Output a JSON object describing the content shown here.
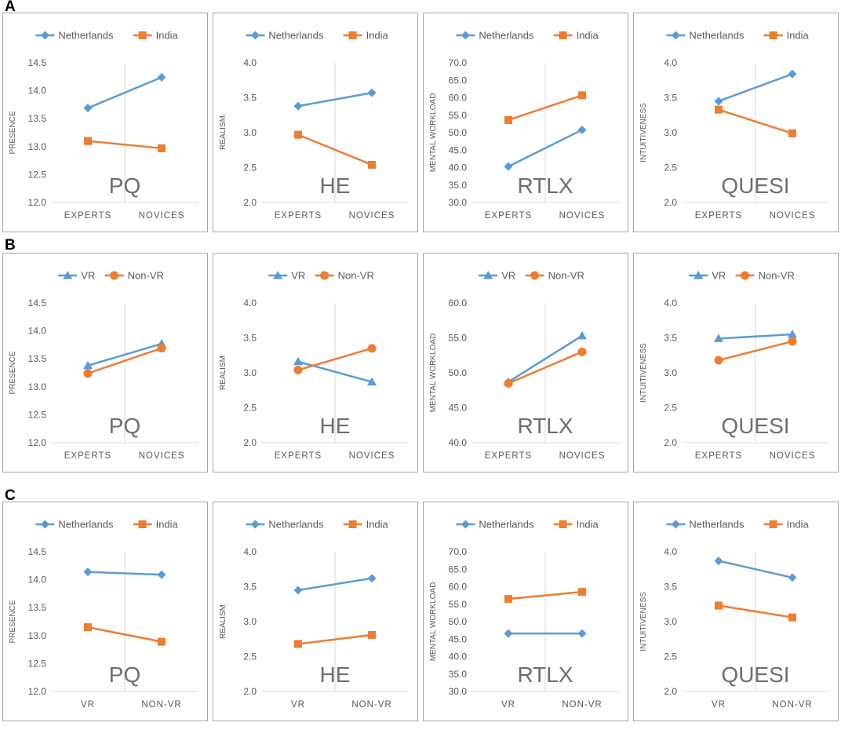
{
  "colors": {
    "blue": "#5b9bd5",
    "orange": "#ed7d31",
    "grid": "#d9d9d9",
    "frame": "#a6a6a6",
    "axis_text": "#595959",
    "watermark": "#6e6e6e"
  },
  "rows": [
    {
      "label": "A"
    },
    {
      "label": "B"
    },
    {
      "label": "C"
    }
  ],
  "chart_data": [
    {
      "row": "A",
      "type": "line",
      "watermark": "PQ",
      "ylabel": "PRESENCE",
      "categories": [
        "EXPERTS",
        "NOVICES"
      ],
      "ylim": [
        12.0,
        14.5
      ],
      "yticks": [
        "12.0",
        "12.5",
        "13.0",
        "13.5",
        "14.0",
        "14.5"
      ],
      "grid": true,
      "legend": "top",
      "series": [
        {
          "name": "Netherlands",
          "marker": "diamond",
          "color": "#5b9bd5",
          "values": [
            13.69,
            14.24
          ]
        },
        {
          "name": "India",
          "marker": "square",
          "color": "#ed7d31",
          "values": [
            13.1,
            12.97
          ]
        }
      ]
    },
    {
      "row": "A",
      "type": "line",
      "watermark": "HE",
      "ylabel": "REALISM",
      "categories": [
        "EXPERTS",
        "NOVICES"
      ],
      "ylim": [
        2.0,
        4.0
      ],
      "yticks": [
        "2.0",
        "2.5",
        "3.0",
        "3.5",
        "4.0"
      ],
      "grid": true,
      "legend": "top",
      "series": [
        {
          "name": "Netherlands",
          "marker": "diamond",
          "color": "#5b9bd5",
          "values": [
            3.38,
            3.57
          ]
        },
        {
          "name": "India",
          "marker": "square",
          "color": "#ed7d31",
          "values": [
            2.97,
            2.54
          ]
        }
      ]
    },
    {
      "row": "A",
      "type": "line",
      "watermark": "RTLX",
      "ylabel": "MENTAL WORKLOAD",
      "categories": [
        "EXPERTS",
        "NOVICES"
      ],
      "ylim": [
        30.0,
        70.0
      ],
      "yticks": [
        "30.0",
        "35.0",
        "40.0",
        "45.0",
        "50.0",
        "55.0",
        "60.0",
        "65.0",
        "70.0"
      ],
      "grid": true,
      "legend": "top",
      "series": [
        {
          "name": "Netherlands",
          "marker": "diamond",
          "color": "#5b9bd5",
          "values": [
            40.3,
            50.8
          ]
        },
        {
          "name": "India",
          "marker": "square",
          "color": "#ed7d31",
          "values": [
            53.6,
            60.7
          ]
        }
      ]
    },
    {
      "row": "A",
      "type": "line",
      "watermark": "QUESI",
      "ylabel": "INTUITIVENESS",
      "categories": [
        "EXPERTS",
        "NOVICES"
      ],
      "ylim": [
        2.0,
        4.0
      ],
      "yticks": [
        "2.0",
        "2.5",
        "3.0",
        "3.5",
        "4.0"
      ],
      "grid": true,
      "legend": "top",
      "series": [
        {
          "name": "Netherlands",
          "marker": "diamond",
          "color": "#5b9bd5",
          "values": [
            3.45,
            3.84
          ]
        },
        {
          "name": "India",
          "marker": "square",
          "color": "#ed7d31",
          "values": [
            3.33,
            2.99
          ]
        }
      ]
    },
    {
      "row": "B",
      "type": "line",
      "watermark": "PQ",
      "ylabel": "PRESENCE",
      "categories": [
        "EXPERTS",
        "NOVICES"
      ],
      "ylim": [
        12.0,
        14.5
      ],
      "yticks": [
        "12.0",
        "12.5",
        "13.0",
        "13.5",
        "14.0",
        "14.5"
      ],
      "grid": true,
      "legend": "top",
      "series": [
        {
          "name": "VR",
          "marker": "triangle",
          "color": "#5b9bd5",
          "values": [
            13.38,
            13.77
          ]
        },
        {
          "name": "Non-VR",
          "marker": "circle",
          "color": "#ed7d31",
          "values": [
            13.24,
            13.69
          ]
        }
      ]
    },
    {
      "row": "B",
      "type": "line",
      "watermark": "HE",
      "ylabel": "REALISM",
      "categories": [
        "EXPERTS",
        "NOVICES"
      ],
      "ylim": [
        2.0,
        4.0
      ],
      "yticks": [
        "2.0",
        "2.5",
        "3.0",
        "3.5",
        "4.0"
      ],
      "grid": true,
      "legend": "top",
      "series": [
        {
          "name": "VR",
          "marker": "triangle",
          "color": "#5b9bd5",
          "values": [
            3.16,
            2.87
          ]
        },
        {
          "name": "Non-VR",
          "marker": "circle",
          "color": "#ed7d31",
          "values": [
            3.04,
            3.35
          ]
        }
      ]
    },
    {
      "row": "B",
      "type": "line",
      "watermark": "RTLX",
      "ylabel": "MENTAL WORKLOAD",
      "categories": [
        "EXPERTS",
        "NOVICES"
      ],
      "ylim": [
        40.0,
        60.0
      ],
      "yticks": [
        "40.0",
        "45.0",
        "50.0",
        "55.0",
        "60.0"
      ],
      "grid": true,
      "legend": "top",
      "series": [
        {
          "name": "VR",
          "marker": "triangle",
          "color": "#5b9bd5",
          "values": [
            48.7,
            55.3
          ]
        },
        {
          "name": "Non-VR",
          "marker": "circle",
          "color": "#ed7d31",
          "values": [
            48.5,
            53.0
          ]
        }
      ]
    },
    {
      "row": "B",
      "type": "line",
      "watermark": "QUESI",
      "ylabel": "INTUITIVENESS",
      "categories": [
        "EXPERTS",
        "NOVICES"
      ],
      "ylim": [
        2.0,
        4.0
      ],
      "yticks": [
        "2.0",
        "2.5",
        "3.0",
        "3.5",
        "4.0"
      ],
      "grid": true,
      "legend": "top",
      "series": [
        {
          "name": "VR",
          "marker": "triangle",
          "color": "#5b9bd5",
          "values": [
            3.49,
            3.55
          ]
        },
        {
          "name": "Non-VR",
          "marker": "circle",
          "color": "#ed7d31",
          "values": [
            3.18,
            3.45
          ]
        }
      ]
    },
    {
      "row": "C",
      "type": "line",
      "watermark": "PQ",
      "ylabel": "PRESENCE",
      "categories": [
        "VR",
        "NON-VR"
      ],
      "ylim": [
        12.0,
        14.5
      ],
      "yticks": [
        "12.0",
        "12.5",
        "13.0",
        "13.5",
        "14.0",
        "14.5"
      ],
      "grid": true,
      "legend": "top",
      "series": [
        {
          "name": "Netherlands",
          "marker": "diamond",
          "color": "#5b9bd5",
          "values": [
            14.14,
            14.09
          ]
        },
        {
          "name": "India",
          "marker": "square",
          "color": "#ed7d31",
          "values": [
            13.15,
            12.89
          ]
        }
      ]
    },
    {
      "row": "C",
      "type": "line",
      "watermark": "HE",
      "ylabel": "REALISM",
      "categories": [
        "VR",
        "NON-VR"
      ],
      "ylim": [
        2.0,
        4.0
      ],
      "yticks": [
        "2.0",
        "2.5",
        "3.0",
        "3.5",
        "4.0"
      ],
      "grid": true,
      "legend": "top",
      "series": [
        {
          "name": "Netherlands",
          "marker": "diamond",
          "color": "#5b9bd5",
          "values": [
            3.45,
            3.62
          ]
        },
        {
          "name": "India",
          "marker": "square",
          "color": "#ed7d31",
          "values": [
            2.68,
            2.81
          ]
        }
      ]
    },
    {
      "row": "C",
      "type": "line",
      "watermark": "RTLX",
      "ylabel": "MENTAL WORKLOAD",
      "categories": [
        "VR",
        "NON-VR"
      ],
      "ylim": [
        30.0,
        70.0
      ],
      "yticks": [
        "30.0",
        "35.0",
        "40.0",
        "45.0",
        "50.0",
        "55.0",
        "60.0",
        "65.0",
        "70.0"
      ],
      "grid": true,
      "legend": "top",
      "series": [
        {
          "name": "Netherlands",
          "marker": "diamond",
          "color": "#5b9bd5",
          "values": [
            46.6,
            46.6
          ]
        },
        {
          "name": "India",
          "marker": "square",
          "color": "#ed7d31",
          "values": [
            56.5,
            58.5
          ]
        }
      ]
    },
    {
      "row": "C",
      "type": "line",
      "watermark": "QUESI",
      "ylabel": "INTUITIVENESS",
      "categories": [
        "VR",
        "NON-VR"
      ],
      "ylim": [
        2.0,
        4.0
      ],
      "yticks": [
        "2.0",
        "2.5",
        "3.0",
        "3.5",
        "4.0"
      ],
      "grid": true,
      "legend": "top",
      "series": [
        {
          "name": "Netherlands",
          "marker": "diamond",
          "color": "#5b9bd5",
          "values": [
            3.87,
            3.63
          ]
        },
        {
          "name": "India",
          "marker": "square",
          "color": "#ed7d31",
          "values": [
            3.23,
            3.06
          ]
        }
      ]
    }
  ]
}
